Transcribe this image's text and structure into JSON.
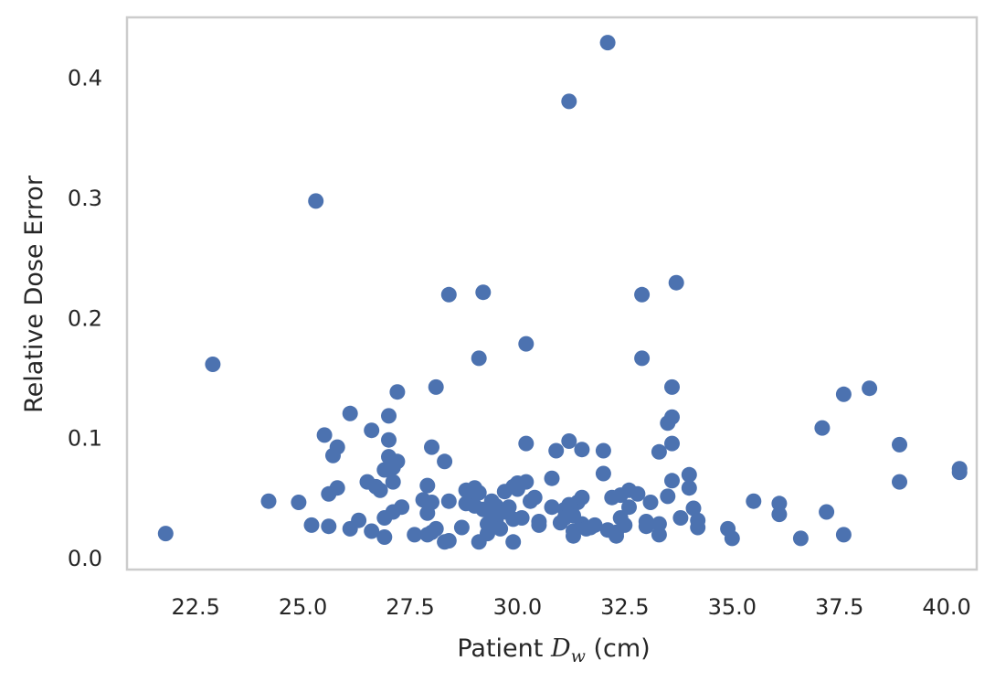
{
  "chart_data": {
    "type": "scatter",
    "xlabel": {
      "prefix": "Patient ",
      "symbol": "D",
      "subscript": "w",
      "suffix": " (cm)"
    },
    "ylabel": "Relative Dose Error",
    "xlim": [
      20.9,
      40.7
    ],
    "ylim": [
      -0.01,
      0.45
    ],
    "xticks": [
      22.5,
      25.0,
      27.5,
      30.0,
      32.5,
      35.0,
      37.5,
      40.0
    ],
    "xtick_labels": [
      "22.5",
      "25.0",
      "27.5",
      "30.0",
      "32.5",
      "35.0",
      "37.5",
      "40.0"
    ],
    "yticks": [
      0.0,
      0.1,
      0.2,
      0.3,
      0.4
    ],
    "ytick_labels": [
      "0.0",
      "0.1",
      "0.2",
      "0.3",
      "0.4"
    ],
    "grid": false,
    "marker_color": "#4c72b0",
    "frame_color": "#cccccc",
    "text_color": "#262626",
    "points": [
      [
        21.8,
        0.02
      ],
      [
        22.9,
        0.161
      ],
      [
        24.2,
        0.047
      ],
      [
        24.9,
        0.046
      ],
      [
        25.2,
        0.027
      ],
      [
        25.3,
        0.297
      ],
      [
        25.5,
        0.102
      ],
      [
        25.6,
        0.053
      ],
      [
        25.6,
        0.026
      ],
      [
        25.7,
        0.085
      ],
      [
        25.8,
        0.092
      ],
      [
        25.8,
        0.058
      ],
      [
        26.1,
        0.12
      ],
      [
        26.1,
        0.024
      ],
      [
        26.3,
        0.031
      ],
      [
        26.5,
        0.063
      ],
      [
        26.6,
        0.106
      ],
      [
        26.6,
        0.022
      ],
      [
        26.7,
        0.059
      ],
      [
        26.8,
        0.056
      ],
      [
        26.9,
        0.073
      ],
      [
        26.9,
        0.033
      ],
      [
        26.9,
        0.017
      ],
      [
        27.0,
        0.084
      ],
      [
        27.0,
        0.098
      ],
      [
        27.0,
        0.118
      ],
      [
        27.1,
        0.063
      ],
      [
        27.1,
        0.075
      ],
      [
        27.1,
        0.038
      ],
      [
        27.2,
        0.08
      ],
      [
        27.2,
        0.138
      ],
      [
        27.3,
        0.042
      ],
      [
        27.6,
        0.019
      ],
      [
        27.8,
        0.048
      ],
      [
        27.9,
        0.019
      ],
      [
        27.9,
        0.06
      ],
      [
        27.9,
        0.037
      ],
      [
        28.0,
        0.092
      ],
      [
        28.0,
        0.046
      ],
      [
        28.0,
        0.021
      ],
      [
        28.1,
        0.024
      ],
      [
        28.1,
        0.142
      ],
      [
        28.3,
        0.08
      ],
      [
        28.3,
        0.013
      ],
      [
        28.4,
        0.047
      ],
      [
        28.4,
        0.219
      ],
      [
        28.4,
        0.014
      ],
      [
        28.7,
        0.025
      ],
      [
        28.8,
        0.045
      ],
      [
        28.8,
        0.056
      ],
      [
        28.9,
        0.052
      ],
      [
        29.0,
        0.058
      ],
      [
        29.0,
        0.043
      ],
      [
        29.1,
        0.166
      ],
      [
        29.1,
        0.013
      ],
      [
        29.1,
        0.054
      ],
      [
        29.2,
        0.221
      ],
      [
        29.2,
        0.04
      ],
      [
        29.3,
        0.028
      ],
      [
        29.3,
        0.02
      ],
      [
        29.4,
        0.047
      ],
      [
        29.4,
        0.036
      ],
      [
        29.5,
        0.03
      ],
      [
        29.5,
        0.043
      ],
      [
        29.6,
        0.024
      ],
      [
        29.7,
        0.055
      ],
      [
        29.7,
        0.038
      ],
      [
        29.8,
        0.042
      ],
      [
        29.9,
        0.059
      ],
      [
        29.9,
        0.032
      ],
      [
        29.9,
        0.013
      ],
      [
        30.0,
        0.062
      ],
      [
        30.0,
        0.057
      ],
      [
        30.1,
        0.033
      ],
      [
        30.2,
        0.063
      ],
      [
        30.2,
        0.095
      ],
      [
        30.2,
        0.178
      ],
      [
        30.3,
        0.047
      ],
      [
        30.4,
        0.05
      ],
      [
        30.5,
        0.027
      ],
      [
        30.5,
        0.03
      ],
      [
        30.8,
        0.066
      ],
      [
        30.8,
        0.042
      ],
      [
        30.9,
        0.089
      ],
      [
        31.0,
        0.029
      ],
      [
        31.1,
        0.04
      ],
      [
        31.1,
        0.033
      ],
      [
        31.2,
        0.044
      ],
      [
        31.2,
        0.38
      ],
      [
        31.2,
        0.097
      ],
      [
        31.3,
        0.018
      ],
      [
        31.3,
        0.035
      ],
      [
        31.3,
        0.022
      ],
      [
        31.4,
        0.046
      ],
      [
        31.5,
        0.028
      ],
      [
        31.5,
        0.05
      ],
      [
        31.5,
        0.09
      ],
      [
        31.6,
        0.024
      ],
      [
        31.7,
        0.025
      ],
      [
        31.8,
        0.027
      ],
      [
        32.0,
        0.07
      ],
      [
        32.0,
        0.089
      ],
      [
        32.1,
        0.023
      ],
      [
        32.1,
        0.429
      ],
      [
        32.2,
        0.05
      ],
      [
        32.3,
        0.018
      ],
      [
        32.3,
        0.021
      ],
      [
        32.4,
        0.052
      ],
      [
        32.4,
        0.033
      ],
      [
        32.5,
        0.027
      ],
      [
        32.6,
        0.042
      ],
      [
        32.6,
        0.056
      ],
      [
        32.8,
        0.053
      ],
      [
        32.9,
        0.219
      ],
      [
        32.9,
        0.166
      ],
      [
        33.0,
        0.026
      ],
      [
        33.0,
        0.03
      ],
      [
        33.1,
        0.046
      ],
      [
        33.3,
        0.028
      ],
      [
        33.3,
        0.019
      ],
      [
        33.3,
        0.088
      ],
      [
        33.5,
        0.051
      ],
      [
        33.5,
        0.112
      ],
      [
        33.6,
        0.117
      ],
      [
        33.6,
        0.064
      ],
      [
        33.6,
        0.142
      ],
      [
        33.6,
        0.095
      ],
      [
        33.7,
        0.229
      ],
      [
        33.8,
        0.033
      ],
      [
        34.0,
        0.069
      ],
      [
        34.0,
        0.058
      ],
      [
        34.1,
        0.041
      ],
      [
        34.2,
        0.031
      ],
      [
        34.2,
        0.025
      ],
      [
        34.9,
        0.024
      ],
      [
        35.0,
        0.016
      ],
      [
        35.5,
        0.047
      ],
      [
        36.1,
        0.045
      ],
      [
        36.1,
        0.036
      ],
      [
        36.6,
        0.016
      ],
      [
        37.1,
        0.108
      ],
      [
        37.2,
        0.038
      ],
      [
        37.6,
        0.136
      ],
      [
        37.6,
        0.019
      ],
      [
        38.2,
        0.141
      ],
      [
        38.9,
        0.094
      ],
      [
        38.9,
        0.063
      ],
      [
        40.3,
        0.074
      ],
      [
        40.3,
        0.071
      ]
    ]
  }
}
